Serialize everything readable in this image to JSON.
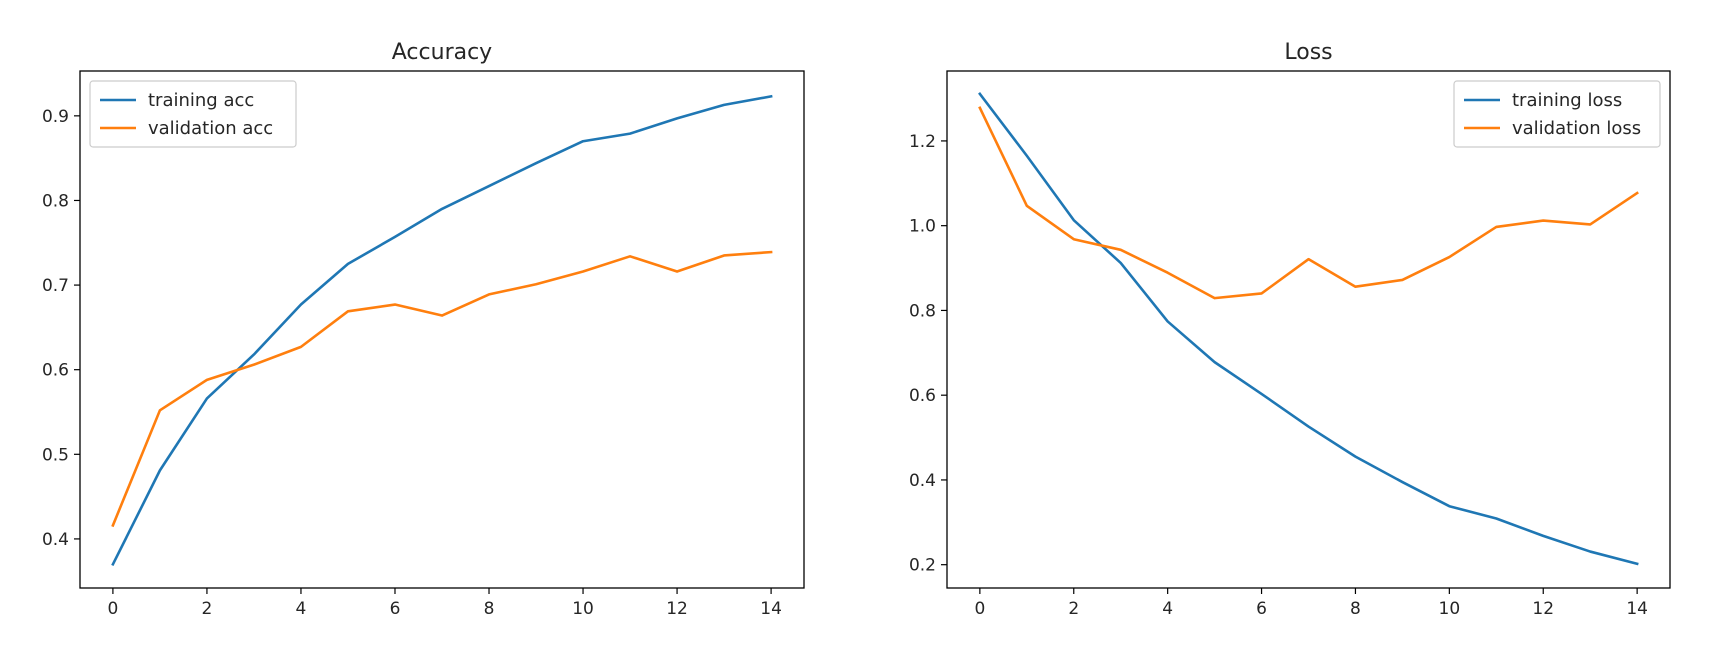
{
  "chart_data": [
    {
      "type": "line",
      "title": "Accuracy",
      "xlabel": "",
      "ylabel": "",
      "xlim": [
        -0.7,
        14.7
      ],
      "ylim": [
        0.342,
        0.953
      ],
      "xticks": [
        0,
        2,
        4,
        6,
        8,
        10,
        12,
        14
      ],
      "yticks": [
        0.4,
        0.5,
        0.6,
        0.7,
        0.8,
        0.9
      ],
      "xtick_labels": [
        "0",
        "2",
        "4",
        "6",
        "8",
        "10",
        "12",
        "14"
      ],
      "ytick_labels": [
        "0.4",
        "0.5",
        "0.6",
        "0.7",
        "0.8",
        "0.9"
      ],
      "grid": false,
      "legend_position": "upper-left",
      "x": [
        0,
        1,
        2,
        3,
        4,
        5,
        6,
        7,
        8,
        9,
        10,
        11,
        12,
        13,
        14
      ],
      "series": [
        {
          "name": "training acc",
          "color": "#1f77b4",
          "values": [
            0.37,
            0.481,
            0.566,
            0.618,
            0.677,
            0.725,
            0.757,
            0.79,
            0.817,
            0.844,
            0.87,
            0.879,
            0.897,
            0.913,
            0.923
          ]
        },
        {
          "name": "validation acc",
          "color": "#ff7f0e",
          "values": [
            0.416,
            0.552,
            0.588,
            0.606,
            0.627,
            0.669,
            0.677,
            0.664,
            0.689,
            0.701,
            0.716,
            0.734,
            0.716,
            0.735,
            0.739
          ]
        }
      ]
    },
    {
      "type": "line",
      "title": "Loss",
      "xlabel": "",
      "ylabel": "",
      "xlim": [
        -0.7,
        14.7
      ],
      "ylim": [
        0.145,
        1.365
      ],
      "xticks": [
        0,
        2,
        4,
        6,
        8,
        10,
        12,
        14
      ],
      "yticks": [
        0.2,
        0.4,
        0.6,
        0.8,
        1.0,
        1.2
      ],
      "xtick_labels": [
        "0",
        "2",
        "4",
        "6",
        "8",
        "10",
        "12",
        "14"
      ],
      "ytick_labels": [
        "0.2",
        "0.4",
        "0.6",
        "0.8",
        "1.0",
        "1.2"
      ],
      "grid": false,
      "legend_position": "upper-right",
      "x": [
        0,
        1,
        2,
        3,
        4,
        5,
        6,
        7,
        8,
        9,
        10,
        11,
        12,
        13,
        14
      ],
      "series": [
        {
          "name": "training loss",
          "color": "#1f77b4",
          "values": [
            1.311,
            1.165,
            1.013,
            0.912,
            0.774,
            0.678,
            0.603,
            0.526,
            0.455,
            0.395,
            0.338,
            0.309,
            0.268,
            0.231,
            0.202
          ]
        },
        {
          "name": "validation loss",
          "color": "#ff7f0e",
          "values": [
            1.278,
            1.047,
            0.968,
            0.943,
            0.889,
            0.829,
            0.84,
            0.921,
            0.856,
            0.872,
            0.926,
            0.997,
            1.012,
            1.003,
            1.077
          ]
        }
      ]
    }
  ]
}
